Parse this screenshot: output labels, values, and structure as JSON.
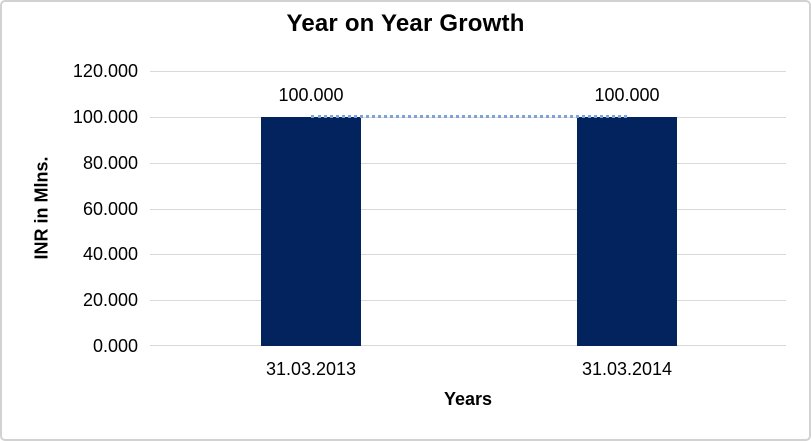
{
  "chart_data": {
    "type": "bar",
    "title": "Year on Year Growth",
    "categories": [
      "31.03.2013",
      "31.03.2014"
    ],
    "values": [
      100.0,
      100.0
    ],
    "data_labels": [
      "100.000",
      "100.000"
    ],
    "series": [
      {
        "name": "bar-series",
        "type": "bar",
        "values": [
          100.0,
          100.0
        ],
        "color": "#03235f"
      },
      {
        "name": "dotted-line-series",
        "type": "line",
        "line_style": "dotted",
        "values": [
          100.0,
          100.0
        ],
        "color": "#7ea3db"
      }
    ],
    "xlabel": "Years",
    "ylabel": "INR  in Mlns.",
    "ylim": [
      0,
      120
    ],
    "ytick_interval": 20,
    "yticks": [
      "120.000",
      "100.000",
      "80.000",
      "60.000",
      "40.000",
      "20.000",
      "0.000"
    ],
    "ytick_values": [
      120,
      100,
      80,
      60,
      40,
      20,
      0
    ],
    "grid": true,
    "legend_position": "none",
    "colors": {
      "bar": "#03235f",
      "line": "#7ea3db",
      "gridline": "#d9d9d9",
      "text": "#000000",
      "border": "#d2d2d2",
      "background": "#ffffff"
    }
  }
}
